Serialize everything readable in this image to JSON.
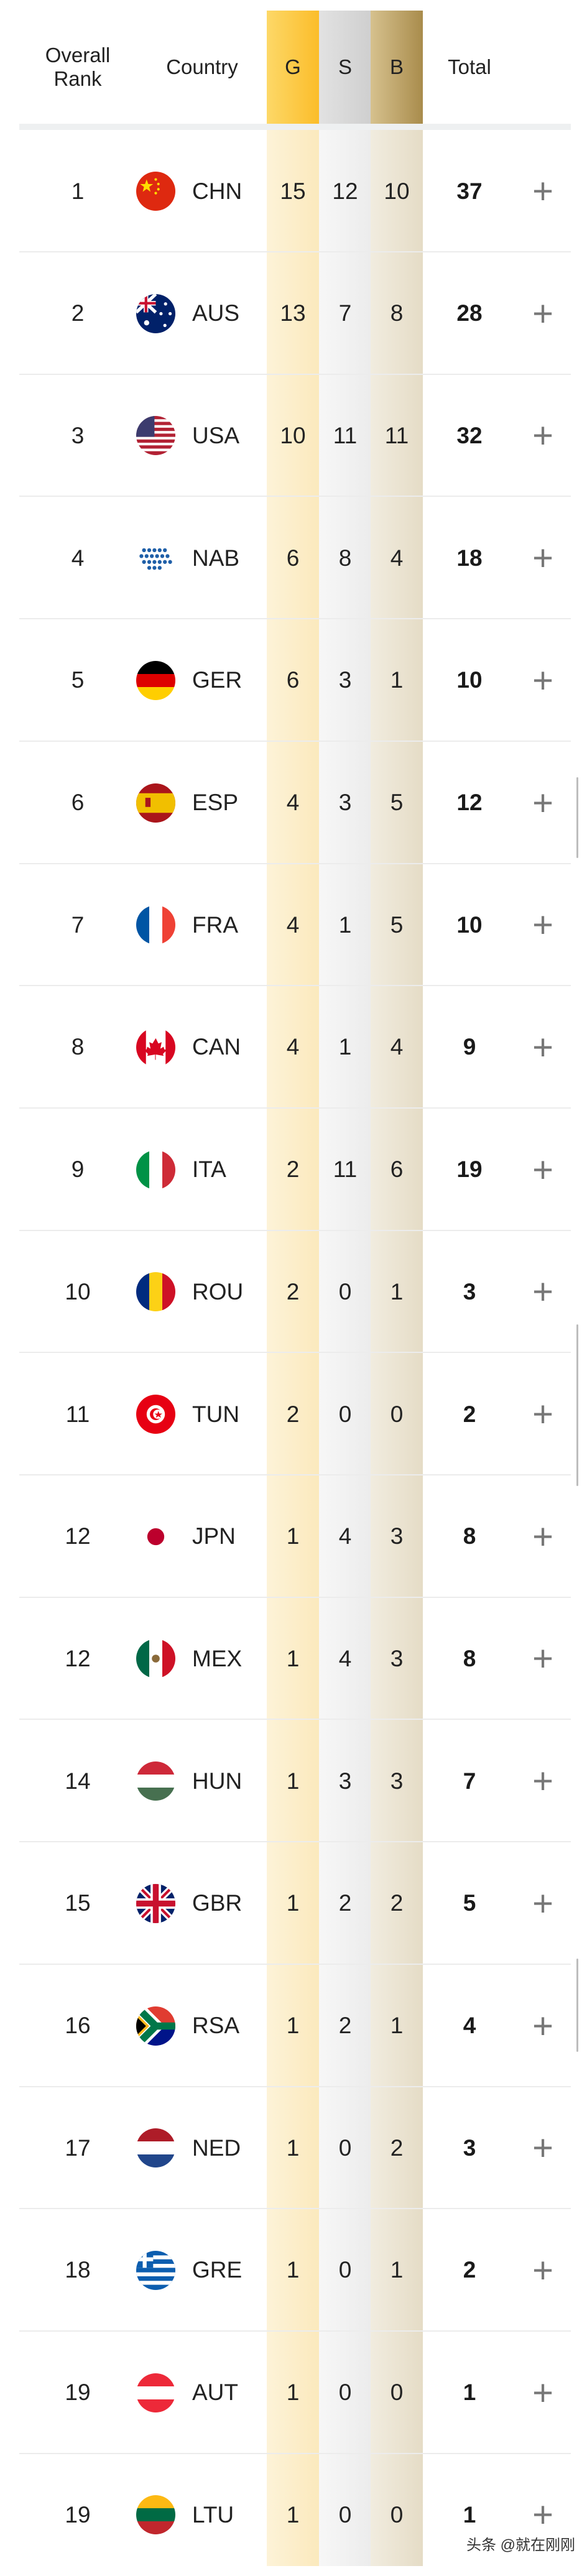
{
  "header": {
    "rank": "Overall Rank",
    "country": "Country",
    "gold": "G",
    "silver": "S",
    "bronze": "B",
    "total": "Total"
  },
  "colors": {
    "gold": "#fbbd2a",
    "silver": "#cfcfcf",
    "bronze": "#a98c4c"
  },
  "expand_icon": "plus-icon",
  "rows": [
    {
      "rank": "1",
      "code": "CHN",
      "g": "15",
      "s": "12",
      "b": "10",
      "total": "37"
    },
    {
      "rank": "2",
      "code": "AUS",
      "g": "13",
      "s": "7",
      "b": "8",
      "total": "28"
    },
    {
      "rank": "3",
      "code": "USA",
      "g": "10",
      "s": "11",
      "b": "11",
      "total": "32"
    },
    {
      "rank": "4",
      "code": "NAB",
      "g": "6",
      "s": "8",
      "b": "4",
      "total": "18"
    },
    {
      "rank": "5",
      "code": "GER",
      "g": "6",
      "s": "3",
      "b": "1",
      "total": "10"
    },
    {
      "rank": "6",
      "code": "ESP",
      "g": "4",
      "s": "3",
      "b": "5",
      "total": "12"
    },
    {
      "rank": "7",
      "code": "FRA",
      "g": "4",
      "s": "1",
      "b": "5",
      "total": "10"
    },
    {
      "rank": "8",
      "code": "CAN",
      "g": "4",
      "s": "1",
      "b": "4",
      "total": "9"
    },
    {
      "rank": "9",
      "code": "ITA",
      "g": "2",
      "s": "11",
      "b": "6",
      "total": "19"
    },
    {
      "rank": "10",
      "code": "ROU",
      "g": "2",
      "s": "0",
      "b": "1",
      "total": "3"
    },
    {
      "rank": "11",
      "code": "TUN",
      "g": "2",
      "s": "0",
      "b": "0",
      "total": "2"
    },
    {
      "rank": "12",
      "code": "JPN",
      "g": "1",
      "s": "4",
      "b": "3",
      "total": "8"
    },
    {
      "rank": "12",
      "code": "MEX",
      "g": "1",
      "s": "4",
      "b": "3",
      "total": "8"
    },
    {
      "rank": "14",
      "code": "HUN",
      "g": "1",
      "s": "3",
      "b": "3",
      "total": "7"
    },
    {
      "rank": "15",
      "code": "GBR",
      "g": "1",
      "s": "2",
      "b": "2",
      "total": "5"
    },
    {
      "rank": "16",
      "code": "RSA",
      "g": "1",
      "s": "2",
      "b": "1",
      "total": "4"
    },
    {
      "rank": "17",
      "code": "NED",
      "g": "1",
      "s": "0",
      "b": "2",
      "total": "3"
    },
    {
      "rank": "18",
      "code": "GRE",
      "g": "1",
      "s": "0",
      "b": "1",
      "total": "2"
    },
    {
      "rank": "19",
      "code": "AUT",
      "g": "1",
      "s": "0",
      "b": "0",
      "total": "1"
    },
    {
      "rank": "19",
      "code": "LTU",
      "g": "1",
      "s": "0",
      "b": "0",
      "total": "1"
    }
  ],
  "watermark": "头条 @就在刚刚"
}
